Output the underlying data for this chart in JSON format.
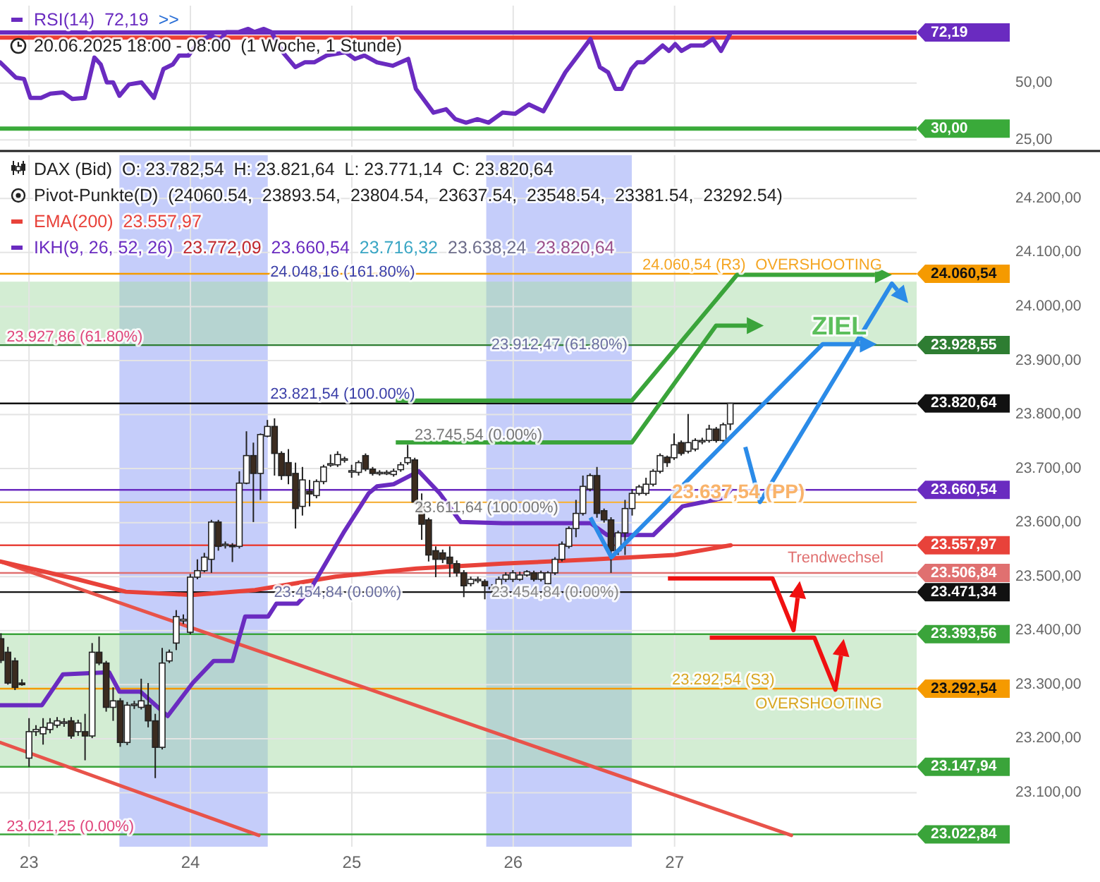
{
  "chart_data": [
    {
      "type": "line",
      "xlim": [
        22.82,
        28.5
      ],
      "xticks": [
        23,
        24,
        25,
        26,
        27
      ],
      "ylim": [
        22,
        84
      ],
      "yticks": [
        {
          "value": 25,
          "label": "25,00"
        },
        {
          "value": 50,
          "label": "50,00"
        }
      ],
      "tick_labels": "y",
      "grid": true,
      "legend": "top left",
      "series": [
        {
          "name": "RSI(14)",
          "color": "#6a2bc0",
          "x": [
            22.821,
            22.918,
            22.969,
            23.008,
            23.074,
            23.132,
            23.21,
            23.268,
            23.346,
            23.405,
            23.444,
            23.482,
            23.521,
            23.56,
            23.619,
            23.696,
            23.774,
            23.833,
            23.891,
            23.93,
            23.988,
            24.047,
            24.125,
            24.183,
            24.222,
            24.3,
            24.358,
            24.397,
            24.455,
            24.502,
            24.572,
            24.65,
            24.708,
            24.767,
            24.844,
            24.961,
            25.019,
            25.078,
            25.156,
            25.253,
            25.35,
            25.397,
            25.506,
            25.584,
            25.642,
            25.708,
            25.778,
            25.848,
            25.934,
            26.012,
            26.097,
            26.187,
            26.323,
            26.479,
            26.537,
            26.588,
            26.634,
            26.673,
            26.732,
            26.77,
            26.809,
            26.926,
            26.965,
            27.004,
            27.043,
            27.101,
            27.179,
            27.237,
            27.288,
            27.348
          ],
          "values": [
            59.1,
            52.4,
            51.8,
            43.5,
            43.5,
            45.3,
            45.9,
            43.0,
            43.5,
            61.2,
            58.2,
            50.3,
            50.3,
            44.4,
            49.4,
            50.3,
            43.5,
            56.2,
            58.2,
            62.1,
            62.1,
            67.9,
            70.9,
            68.8,
            72.4,
            72.4,
            73.8,
            72.4,
            73.8,
            72.4,
            63.5,
            57.0,
            59.1,
            59.1,
            62.1,
            63.5,
            60.6,
            62.1,
            59.1,
            57.6,
            60.6,
            47.4,
            37.0,
            38.5,
            34.1,
            32.6,
            34.1,
            32.6,
            37.0,
            36.5,
            40.6,
            37.6,
            54.7,
            69.4,
            57.0,
            54.7,
            47.4,
            47.4,
            56.2,
            59.1,
            59.1,
            66.5,
            64.1,
            67.1,
            64.1,
            66.5,
            66.5,
            69.4,
            64.1,
            72.2
          ]
        }
      ],
      "ref_lines": [
        {
          "axis": "y",
          "value": 70,
          "color": "#ee4035"
        },
        {
          "axis": "y",
          "value": 30,
          "label": "30,00",
          "color": "#3aaa3a"
        },
        {
          "axis": "y",
          "value": 72.19,
          "label": "72,19",
          "color": "#6a2bc0"
        }
      ],
      "annotations": [
        "72,19",
        ">>",
        "20.06.2025 18:00 - 08:00  (1 Woche, 1 Stunde)"
      ]
    },
    {
      "type": "candlestick",
      "xlim": [
        22.82,
        28.5
      ],
      "xticks": [
        23,
        24,
        25,
        26,
        27
      ],
      "ylim": [
        23000,
        24280
      ],
      "yticks": [
        {
          "value": 23100,
          "label": "23.100,00"
        },
        {
          "value": 23200,
          "label": "23.200,00"
        },
        {
          "value": 23300,
          "label": "23.300,00"
        },
        {
          "value": 23400,
          "label": "23.400,00"
        },
        {
          "value": 23500,
          "label": "23.500,00"
        },
        {
          "value": 23600,
          "label": "23.600,00"
        },
        {
          "value": 23700,
          "label": "23.700,00"
        },
        {
          "value": 23800,
          "label": "23.800,00"
        },
        {
          "value": 23900,
          "label": "23.900,00"
        },
        {
          "value": 24000,
          "label": "24.000,00"
        },
        {
          "value": 24100,
          "label": "24.100,00"
        },
        {
          "value": 24200,
          "label": "24.200,00"
        }
      ],
      "grid": true,
      "legend": "top left",
      "x": [
        22.826,
        22.869,
        22.913,
        22.956,
        23.0,
        23.043,
        23.087,
        23.13,
        23.174,
        23.217,
        23.261,
        23.304,
        23.347,
        23.391,
        23.434,
        23.478,
        23.521,
        23.565,
        23.608,
        23.652,
        23.695,
        23.738,
        23.782,
        23.825,
        23.869,
        23.912,
        23.956,
        23.999,
        24.043,
        24.086,
        24.13,
        24.173,
        24.216,
        24.26,
        24.303,
        24.347,
        24.39,
        24.434,
        24.477,
        24.521,
        24.564,
        24.607,
        24.651,
        24.694,
        24.738,
        24.781,
        24.825,
        24.868,
        24.912,
        24.955,
        24.999,
        25.042,
        25.085,
        25.129,
        25.172,
        25.216,
        25.259,
        25.303,
        25.346,
        25.39,
        25.433,
        25.476,
        25.52,
        25.563,
        25.607,
        25.65,
        25.694,
        25.737,
        25.781,
        25.824,
        25.868,
        25.911,
        25.954,
        25.998,
        26.041,
        26.085,
        26.128,
        26.172,
        26.215,
        26.259,
        26.302,
        26.345,
        26.389,
        26.432,
        26.476,
        26.519,
        26.563,
        26.606,
        26.65,
        26.693,
        26.737,
        26.78,
        26.823,
        26.867,
        26.91,
        26.954,
        26.997,
        27.041,
        27.084,
        27.128,
        27.171,
        27.214,
        27.258,
        27.301,
        27.345
      ],
      "ohlc": [
        [
          23385,
          23395,
          23340,
          23345
        ],
        [
          23360,
          23370,
          23300,
          23303
        ],
        [
          23344,
          23350,
          23290,
          23295
        ],
        [
          23303,
          23310,
          23298,
          23300
        ],
        [
          23164,
          23238,
          23148,
          23213
        ],
        [
          23213,
          23225,
          23205,
          23217
        ],
        [
          23209,
          23238,
          23189,
          23221
        ],
        [
          23217,
          23238,
          23210,
          23229
        ],
        [
          23225,
          23240,
          23220,
          23233
        ],
        [
          23229,
          23238,
          23222,
          23231
        ],
        [
          23233,
          23240,
          23200,
          23205
        ],
        [
          23213,
          23235,
          23205,
          23229
        ],
        [
          23213,
          23246,
          23160,
          23205
        ],
        [
          23205,
          23377,
          23201,
          23360
        ],
        [
          23360,
          23389,
          23336,
          23340
        ],
        [
          23340,
          23344,
          23250,
          23258
        ],
        [
          23258,
          23295,
          23233,
          23270
        ],
        [
          23270,
          23275,
          23185,
          23193
        ],
        [
          23193,
          23268,
          23188,
          23262
        ],
        [
          23262,
          23270,
          23255,
          23264
        ],
        [
          23258,
          23311,
          23254,
          23270
        ],
        [
          23262,
          23303,
          23221,
          23233
        ],
        [
          23233,
          23246,
          23127,
          23184
        ],
        [
          23184,
          23368,
          23180,
          23340
        ],
        [
          23344,
          23365,
          23340,
          23360
        ],
        [
          23377,
          23438,
          23364,
          23426
        ],
        [
          23418,
          23430,
          23412,
          23421
        ],
        [
          23397,
          23505,
          23393,
          23499
        ],
        [
          23499,
          23532,
          23495,
          23511
        ],
        [
          23511,
          23544,
          23508,
          23536
        ],
        [
          23532,
          23605,
          23507,
          23601
        ],
        [
          23601,
          23605,
          23548,
          23556
        ],
        [
          23558,
          23565,
          23552,
          23560
        ],
        [
          23558,
          23562,
          23527,
          23557
        ],
        [
          23556,
          23695,
          23552,
          23673
        ],
        [
          23673,
          23769,
          23671,
          23724
        ],
        [
          23724,
          23748,
          23601,
          23691
        ],
        [
          23691,
          23765,
          23642,
          23763
        ],
        [
          23760,
          23790,
          23758,
          23778
        ],
        [
          23778,
          23793,
          23687,
          23728
        ],
        [
          23728,
          23732,
          23679,
          23687
        ],
        [
          23711,
          23736,
          23671,
          23687
        ],
        [
          23691,
          23711,
          23589,
          23626
        ],
        [
          23630,
          23703,
          23613,
          23679
        ],
        [
          23658,
          23679,
          23630,
          23653
        ],
        [
          23650,
          23680,
          23645,
          23676
        ],
        [
          23676,
          23707,
          23671,
          23703
        ],
        [
          23707,
          23726,
          23703,
          23709
        ],
        [
          23707,
          23732,
          23703,
          23726
        ],
        [
          23716,
          23722,
          23711,
          23718
        ],
        [
          23694,
          23707,
          23683,
          23696
        ],
        [
          23693,
          23715,
          23687,
          23711
        ],
        [
          23724,
          23728,
          23695,
          23699
        ],
        [
          23699,
          23703,
          23687,
          23691
        ],
        [
          23691,
          23697,
          23687,
          23693
        ],
        [
          23691,
          23697,
          23688,
          23693
        ],
        [
          23689,
          23700,
          23685,
          23695
        ],
        [
          23698,
          23712,
          23694,
          23707
        ],
        [
          23711,
          23744,
          23707,
          23720
        ],
        [
          23716,
          23720,
          23634,
          23638
        ],
        [
          23636,
          23654,
          23568,
          23597
        ],
        [
          23605,
          23609,
          23528,
          23540
        ],
        [
          23548,
          23556,
          23499,
          23532
        ],
        [
          23544,
          23550,
          23525,
          23532
        ],
        [
          23536,
          23556,
          23499,
          23524
        ],
        [
          23524,
          23530,
          23500,
          23507
        ],
        [
          23507,
          23512,
          23462,
          23483
        ],
        [
          23487,
          23500,
          23482,
          23495
        ],
        [
          23494,
          23500,
          23488,
          23495
        ],
        [
          23491,
          23495,
          23458,
          23483
        ],
        [
          23479,
          23486,
          23472,
          23480
        ],
        [
          23479,
          23500,
          23475,
          23495
        ],
        [
          23495,
          23508,
          23490,
          23503
        ],
        [
          23495,
          23512,
          23490,
          23507
        ],
        [
          23495,
          23509,
          23492,
          23503
        ],
        [
          23503,
          23512,
          23500,
          23509
        ],
        [
          23507,
          23511,
          23491,
          23495
        ],
        [
          23495,
          23511,
          23491,
          23507
        ],
        [
          23487,
          23510,
          23484,
          23507
        ],
        [
          23507,
          23536,
          23503,
          23532
        ],
        [
          23532,
          23565,
          23528,
          23560
        ],
        [
          23556,
          23593,
          23552,
          23589
        ],
        [
          23589,
          23642,
          23573,
          23617
        ],
        [
          23617,
          23687,
          23613,
          23667
        ],
        [
          23662,
          23691,
          23658,
          23687
        ],
        [
          23687,
          23703,
          23609,
          23617
        ],
        [
          23622,
          23626,
          23600,
          23605
        ],
        [
          23605,
          23610,
          23507,
          23548
        ],
        [
          23548,
          23585,
          23540,
          23581
        ],
        [
          23581,
          23642,
          23540,
          23626
        ],
        [
          23626,
          23662,
          23613,
          23654
        ],
        [
          23654,
          23670,
          23650,
          23666
        ],
        [
          23654,
          23683,
          23650,
          23671
        ],
        [
          23671,
          23699,
          23667,
          23695
        ],
        [
          23695,
          23728,
          23691,
          23724
        ],
        [
          23721,
          23724,
          23703,
          23711
        ],
        [
          23720,
          23765,
          23716,
          23744
        ],
        [
          23748,
          23752,
          23724,
          23728
        ],
        [
          23732,
          23801,
          23728,
          23748
        ],
        [
          23736,
          23756,
          23732,
          23752
        ],
        [
          23750,
          23757,
          23745,
          23752
        ],
        [
          23752,
          23781,
          23748,
          23773
        ],
        [
          23773,
          23777,
          23748,
          23752
        ],
        [
          23752,
          23785,
          23748,
          23781
        ],
        [
          23782.54,
          23821.64,
          23771.14,
          23820.64
        ]
      ],
      "series": [
        {
          "type": "line",
          "color": "#e8534a",
          "x": [
            22.821,
            27.724
          ],
          "values": [
            23528,
            23021
          ]
        },
        {
          "type": "line",
          "color": "#e8534a",
          "x": [
            22.821,
            24.424
          ],
          "values": [
            23193,
            23021
          ]
        },
        {
          "type": "line",
          "name": "EMA(200)",
          "color": "#e8423a",
          "x": [
            22.821,
            23.3,
            23.6,
            24.01,
            24.4,
            24.9,
            25.4,
            25.934,
            26.5,
            27.0,
            27.348
          ],
          "values": [
            23528,
            23495,
            23472,
            23466,
            23475,
            23500,
            23515,
            23524,
            23532,
            23540,
            23558
          ]
        },
        {
          "type": "line",
          "name": "IKH(9, 26, 52, 26)",
          "color": "#6a2bc0",
          "x": [
            22.821,
            23.08,
            23.21,
            23.496,
            23.56,
            23.69,
            23.859,
            24.014,
            24.144,
            24.261,
            24.339,
            24.481,
            24.533,
            24.663,
            24.741,
            24.948,
            25.104,
            25.156,
            25.259,
            25.415,
            25.545,
            25.675,
            25.934,
            26.479,
            26.582,
            26.868,
            27.049,
            27.179,
            27.309,
            27.348
          ],
          "values": [
            23262,
            23262,
            23319,
            23323,
            23287,
            23287,
            23242,
            23303,
            23344,
            23344,
            23426,
            23426,
            23450,
            23450,
            23475,
            23581,
            23654,
            23667,
            23671,
            23695,
            23654,
            23601,
            23599,
            23599,
            23577,
            23577,
            23630,
            23638,
            23646,
            23661
          ]
        }
      ],
      "ref_lines": [
        {
          "axis": "y",
          "value": 24060.54,
          "label": "24.060,54",
          "color": "#f59a00"
        },
        {
          "axis": "y",
          "value": 23928.55,
          "label": "23.928,55",
          "color": "#2e7d32"
        },
        {
          "axis": "y",
          "value": 23820.64,
          "label": "23.820,64",
          "color": "#111111"
        },
        {
          "axis": "y",
          "value": 23660.54,
          "label": "23.660,54",
          "color": "#6a2bc0"
        },
        {
          "axis": "y",
          "value": 23637.54,
          "color": "#f5b342"
        },
        {
          "axis": "y",
          "value": 23557.97,
          "label": "23.557,97",
          "color": "#e8423a"
        },
        {
          "axis": "y",
          "value": 23506.84,
          "label": "23.506,84",
          "color": "#e07070"
        },
        {
          "axis": "y",
          "value": 23471.34,
          "label": "23.471,34",
          "color": "#111111"
        },
        {
          "axis": "y",
          "value": 23393.56,
          "label": "23.393,56",
          "color": "#3aa43a"
        },
        {
          "axis": "y",
          "value": 23292.54,
          "label": "23.292,54",
          "color": "#f59a00"
        },
        {
          "axis": "y",
          "value": 23147.94,
          "label": "23.147,94",
          "color": "#3aa43a"
        },
        {
          "axis": "y",
          "value": 23022.84,
          "label": "23.022,84",
          "color": "#3aa43a"
        }
      ],
      "bands": [
        {
          "axis": "x",
          "from": 23.56,
          "to": 24.479,
          "color": "#8c9cf5"
        },
        {
          "axis": "x",
          "from": 25.833,
          "to": 26.735,
          "color": "#8c9cf5"
        },
        {
          "axis": "y",
          "from": 23928,
          "to": 24046,
          "color": "#a8dca8"
        },
        {
          "axis": "y",
          "from": 23148,
          "to": 23393,
          "color": "#a8dca8"
        }
      ],
      "annotations": [
        "DAX (Bid)  O: 23.782,54  H: 23.821,64  L: 23.771,14  C: 23.820,64",
        "Pivot-Punkte(D)  (24060.54,  23893.54,  23804.54,  23637.54,  23548.54,  23381.54,  23292.54)",
        "23.557,97",
        "23.772,09",
        "23.660,54",
        "23.716,32",
        "23.638,24",
        "23.820,64",
        "OVERSHOOTING",
        {
          "text": "24.060,54 (R3)",
          "x": 26.8,
          "y": 24060.54
        },
        {
          "text": "OVERSHOOTING",
          "x": 27.5,
          "y": 24060.54
        },
        {
          "text": "ZIEL",
          "x": 27.85,
          "y": 23940
        },
        {
          "text": "24.048,16 (161.80%)",
          "x": 24.494,
          "y": 24048.16
        },
        {
          "text": "23.927,86 (61.80%)",
          "x": 22.86,
          "y": 23927.86
        },
        {
          "text": "23.912,47 (61.80%)",
          "x": 25.864,
          "y": 23912.47
        },
        {
          "text": "23.821,54 (100.00%)",
          "x": 24.494,
          "y": 23821.54
        },
        {
          "text": "23.745,54 (0.00%)",
          "x": 25.389,
          "y": 23745.54
        },
        {
          "text": "23.637,54 (PP)",
          "x": 26.984,
          "y": 23637.54
        },
        {
          "text": "23.611,64 (100.00%)",
          "x": 25.389,
          "y": 23611.64
        },
        {
          "text": "23.454,84 (0.00%)",
          "x": 24.517,
          "y": 23454.84
        },
        {
          "text": "23.454,84 (0.00%)",
          "x": 25.864,
          "y": 23454.84
        },
        {
          "text": "Trendwechsel",
          "x": 27.7,
          "y": 23519
        },
        {
          "text": "23.292,54 (S3)",
          "x": 26.984,
          "y": 23292.54
        },
        {
          "text": "23.021,25 (0.00%)",
          "x": 22.86,
          "y": 23021.25
        }
      ]
    }
  ]
}
